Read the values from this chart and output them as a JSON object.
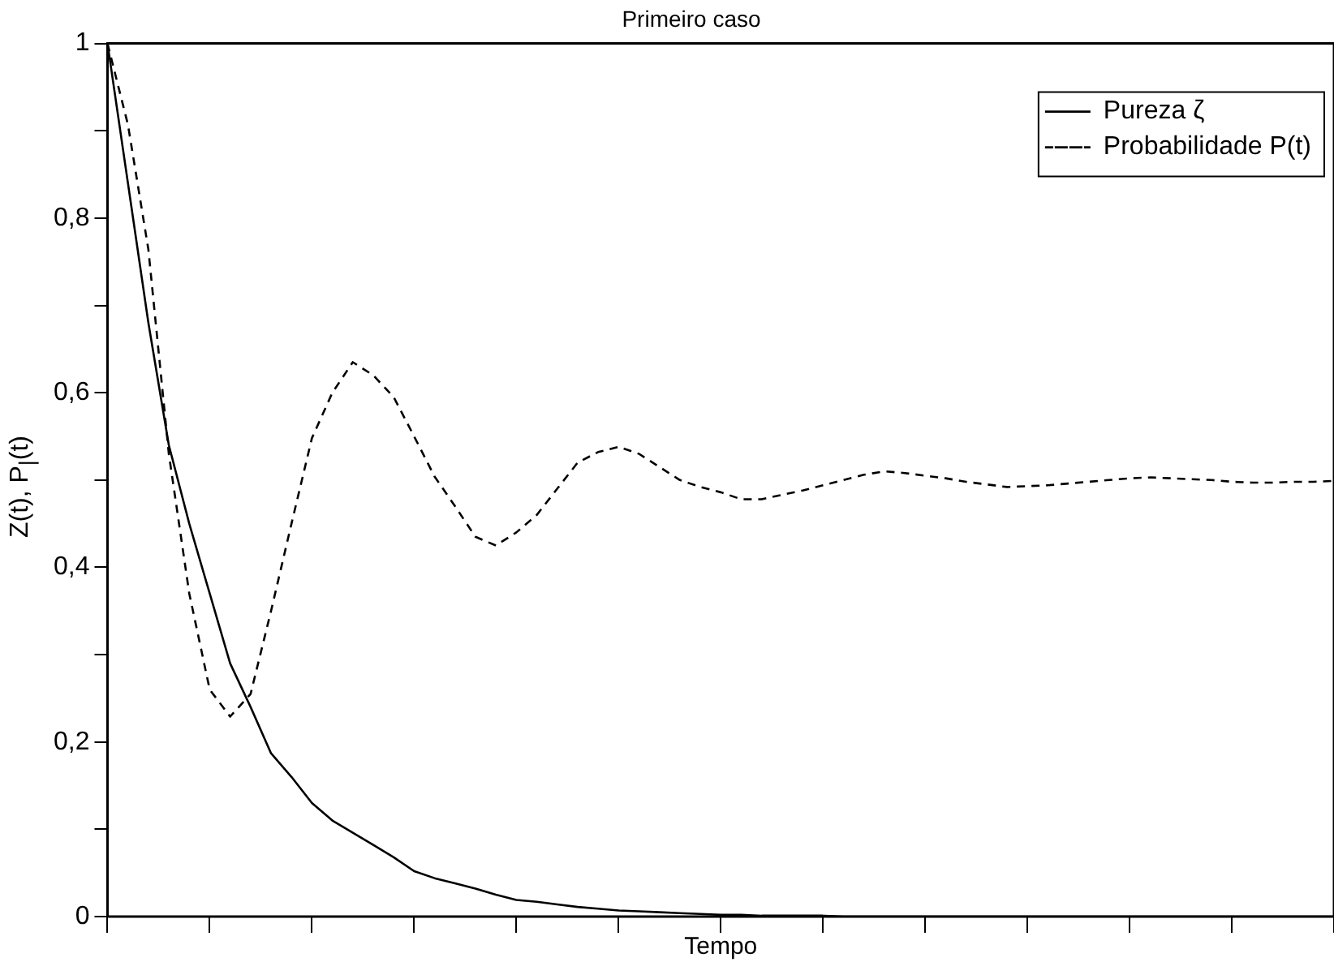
{
  "chart_data": {
    "type": "line",
    "title": "Primeiro caso",
    "xlabel": "Tempo",
    "ylabel": "Z(t), P$_{|}$(t)",
    "categories": [
      null,
      null,
      null,
      null,
      null,
      null,
      null,
      null,
      null,
      null,
      null,
      null,
      null,
      null,
      null,
      null,
      null,
      null,
      null,
      null,
      null,
      null,
      null,
      null,
      null,
      null,
      null,
      null,
      null,
      null,
      null,
      null,
      null,
      null,
      null,
      null,
      null,
      null,
      null,
      null,
      null,
      null,
      null,
      null,
      null,
      null,
      null,
      null,
      null,
      null,
      null,
      null,
      null,
      null,
      null,
      null,
      null,
      null,
      null,
      null,
      null
    ],
    "series": [
      {
        "name": "Pureza ζ",
        "color": "#000000",
        "line_style": "solid",
        "values": [
          1.0,
          0.84,
          0.68,
          0.54,
          0.45,
          0.37,
          0.29,
          0.24,
          0.187,
          0.16,
          0.13,
          0.11,
          0.096,
          0.082,
          0.068,
          0.052,
          0.044,
          0.038,
          0.032,
          0.025,
          0.019,
          0.017,
          0.014,
          0.011,
          0.009,
          0.007,
          0.006,
          0.005,
          0.004,
          0.003,
          0.002,
          0.002,
          0.001,
          0.001,
          0.001,
          0.001,
          0,
          0,
          0,
          0,
          0,
          0,
          0,
          0,
          0,
          0,
          0,
          0,
          0,
          0,
          0,
          0,
          0,
          0,
          0,
          0,
          0,
          0,
          0,
          0,
          0
        ]
      },
      {
        "name": "Probabilidade P(t)",
        "color": "#000000",
        "line_style": "dashed",
        "values": [
          1.0,
          0.907,
          0.764,
          0.53,
          0.37,
          0.26,
          0.229,
          0.255,
          0.35,
          0.45,
          0.548,
          0.6,
          0.635,
          0.62,
          0.595,
          0.55,
          0.504,
          0.47,
          0.435,
          0.425,
          0.44,
          0.46,
          0.49,
          0.52,
          0.532,
          0.538,
          0.53,
          0.515,
          0.5,
          0.492,
          0.486,
          0.478,
          0.478,
          0.483,
          0.488,
          0.494,
          0.5,
          0.506,
          0.51,
          0.508,
          0.505,
          0.502,
          0.498,
          0.495,
          0.492,
          0.493,
          0.494,
          0.496,
          0.498,
          0.5,
          0.502,
          0.503,
          0.502,
          0.501,
          0.5,
          0.498,
          0.497,
          0.497,
          0.498,
          0.498,
          0.499
        ]
      }
    ],
    "ylim": [
      0,
      1
    ],
    "yticks": [
      {
        "value": 0,
        "label": "0"
      },
      {
        "value": 0.1,
        "label": null
      },
      {
        "value": 0.2,
        "label": "0,2"
      },
      {
        "value": 0.3,
        "label": null
      },
      {
        "value": 0.4,
        "label": "0,4"
      },
      {
        "value": 0.5,
        "label": null
      },
      {
        "value": 0.6,
        "label": "0,6"
      },
      {
        "value": 0.7,
        "label": null
      },
      {
        "value": 0.8,
        "label": "0,8"
      },
      {
        "value": 0.9,
        "label": null
      },
      {
        "value": 1,
        "label": "1"
      }
    ],
    "legend": "top right"
  }
}
